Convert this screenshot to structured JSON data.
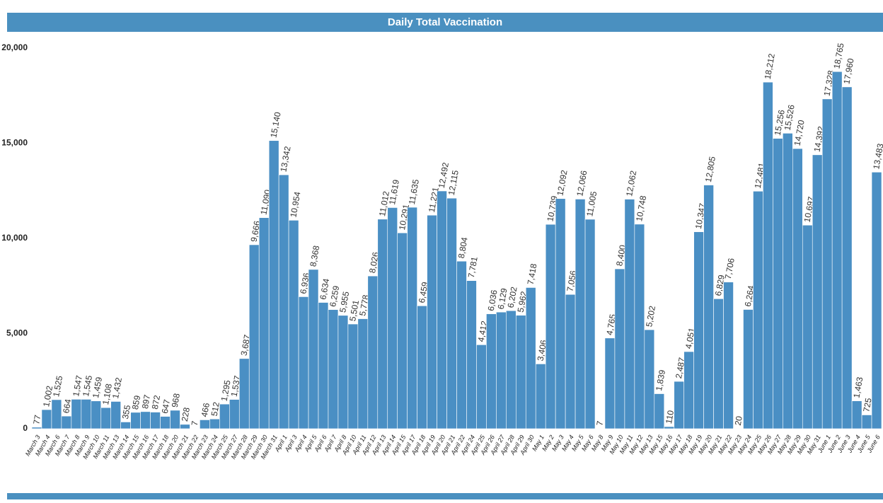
{
  "chart_data": {
    "type": "bar",
    "title": "Daily Total Vaccination",
    "categories": [
      "March 3",
      "March 4",
      "March 6",
      "March 7",
      "March 8",
      "March 9",
      "March 10",
      "March 11",
      "March 13",
      "March 14",
      "March 15",
      "March 16",
      "March 17",
      "March 18",
      "March 20",
      "March 21",
      "March 22",
      "March 23",
      "March 24",
      "March 25",
      "March 27",
      "March 28",
      "March 29",
      "March 30",
      "March 31",
      "April 1",
      "April 3",
      "April 4",
      "April 5",
      "April 6",
      "April 7",
      "April 8",
      "April 10",
      "April 11",
      "April 12",
      "April 13",
      "April 14",
      "April 15",
      "April 17",
      "April 18",
      "April 19",
      "April 20",
      "April 21",
      "April 22",
      "April 24",
      "April 25",
      "April 26",
      "April 27",
      "April 28",
      "April 29",
      "April 30",
      "May 1",
      "May 2",
      "May 3",
      "May 4",
      "May 5",
      "May 6",
      "May 8",
      "May 9",
      "May 10",
      "May 11",
      "May 12",
      "May 13",
      "May 15",
      "May 16",
      "May 17",
      "May 18",
      "May 19",
      "May 20",
      "May 21",
      "May 22",
      "May 23",
      "May 24",
      "May 25",
      "May 26",
      "May 27",
      "May 28",
      "May 29",
      "May 30",
      "May 31",
      "June 1",
      "June 2",
      "June 3",
      "June 4",
      "June 5",
      "June 6"
    ],
    "values": [
      77,
      1002,
      1525,
      664,
      1547,
      1545,
      1459,
      1108,
      1432,
      355,
      859,
      897,
      872,
      647,
      968,
      228,
      7,
      466,
      512,
      1295,
      1537,
      3687,
      9666,
      11090,
      15140,
      13342,
      10954,
      6936,
      8368,
      6634,
      6259,
      5955,
      5501,
      5778,
      8026,
      11012,
      11619,
      10291,
      11635,
      6459,
      11221,
      12492,
      12115,
      8804,
      7781,
      4412,
      6036,
      6129,
      6202,
      5962,
      7418,
      3406,
      10739,
      12092,
      7056,
      12066,
      11005,
      7,
      4765,
      8400,
      12062,
      10748,
      5202,
      1839,
      110,
      2487,
      4051,
      10347,
      12805,
      6829,
      7706,
      20,
      6264,
      12481,
      18212,
      15256,
      15526,
      14720,
      10697,
      14392,
      17328,
      18765,
      17960,
      1463,
      725,
      13483
    ],
    "value_labels": [
      "77",
      "1,002",
      "1,525",
      "664",
      "1,547",
      "1,545",
      "1,459",
      "1,108",
      "1,432",
      "355",
      "859",
      "897",
      "872",
      "647",
      "968",
      "228",
      "7",
      "466",
      "512",
      "1,295",
      "1,537",
      "3,687",
      "9,666",
      "11,090",
      "15,140",
      "13,342",
      "10,954",
      "6,936",
      "8,368",
      "6,634",
      "6,259",
      "5,955",
      "5,501",
      "5,778",
      "8,026",
      "11,012",
      "11,619",
      "10,291",
      "11,635",
      "6,459",
      "11,221",
      "12,492",
      "12,115",
      "8,804",
      "7,781",
      "4,412",
      "6,036",
      "6,129",
      "6,202",
      "5,962",
      "7,418",
      "3,406",
      "10,739",
      "12,092",
      "7,056",
      "12,066",
      "11,005",
      "7",
      "4,765",
      "8,400",
      "12,062",
      "10,748",
      "5,202",
      "1,839",
      "110",
      "2,487",
      "4,051",
      "10,347",
      "12,805",
      "6,829",
      "7,706",
      "20",
      "6,264",
      "12,481",
      "18,212",
      "15,256",
      "15,526",
      "14,720",
      "10,697",
      "14,392",
      "17,328",
      "18,765",
      "17,960",
      "1,463",
      "725",
      "13,483"
    ],
    "color": "#4a8fc4",
    "ylim": [
      0,
      20000
    ],
    "yticks": [
      0,
      {
        "value": 5000,
        "label": "5,000"
      },
      {
        "value": 10000,
        "label": "10,000"
      },
      {
        "value": 15000,
        "label": "15,000"
      },
      {
        "value": 20000,
        "label": "20,000"
      }
    ],
    "grid": false
  }
}
